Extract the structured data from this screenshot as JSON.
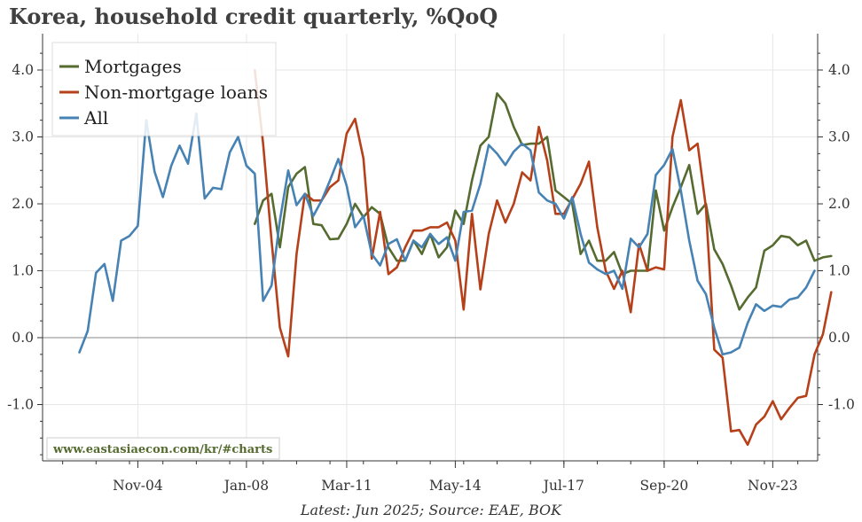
{
  "chart_data": {
    "type": "line",
    "title": "Korea, household credit quarterly, %QoQ",
    "caption": "Latest: Jun 2025; Source: EAE, BOK",
    "watermark": "www.eastasiaecon.com/kr/#charts",
    "xlabel": "",
    "ylabel": "",
    "x_start": "2003Q1",
    "x_tick_labels": [
      "Nov-04",
      "Jan-08",
      "Mar-11",
      "May-14",
      "Jul-17",
      "Sep-20",
      "Nov-23"
    ],
    "x_tick_positions": [
      "2004Q4",
      "2008Q1",
      "2011Q1",
      "2014Q2",
      "2017Q3",
      "2020Q3",
      "2023Q4"
    ],
    "ylim": [
      -1.8,
      4.4
    ],
    "y_ticks": [
      -1.0,
      0.0,
      1.0,
      2.0,
      3.0,
      4.0
    ],
    "y_tick_labels": [
      "-1.0",
      "0.0",
      "1.0",
      "2.0",
      "3.0",
      "4.0"
    ],
    "legend_position": "top-left",
    "series": [
      {
        "name": "Mortgages",
        "color": "#556b2f",
        "start": "2008Q2",
        "values": [
          1.7,
          2.05,
          2.15,
          1.35,
          2.25,
          2.45,
          2.55,
          1.7,
          1.68,
          1.47,
          1.48,
          1.7,
          2.0,
          1.8,
          1.95,
          1.85,
          1.35,
          1.15,
          1.15,
          1.45,
          1.25,
          1.55,
          1.2,
          1.35,
          1.9,
          1.7,
          2.35,
          2.87,
          3.0,
          3.65,
          3.5,
          3.15,
          2.88,
          2.9,
          2.9,
          3.0,
          2.2,
          2.1,
          2.0,
          1.25,
          1.45,
          1.15,
          1.15,
          1.28,
          0.95,
          1.0,
          1.0,
          1.0,
          2.2,
          1.6,
          1.95,
          2.25,
          2.58,
          1.85,
          2.0,
          1.32,
          1.1,
          0.78,
          0.42,
          0.6,
          0.75,
          1.3,
          1.38,
          1.52,
          1.5,
          1.38,
          1.45,
          1.15,
          1.2,
          1.22
        ]
      },
      {
        "name": "Non-mortgage loans",
        "color": "#b5401a",
        "start": "2008Q2",
        "values": [
          4.0,
          2.9,
          1.45,
          0.15,
          -0.28,
          1.25,
          2.15,
          2.05,
          2.05,
          2.25,
          2.35,
          3.05,
          3.27,
          2.68,
          1.18,
          1.88,
          0.95,
          1.05,
          1.35,
          1.6,
          1.6,
          1.65,
          1.65,
          1.72,
          1.45,
          0.42,
          1.85,
          0.72,
          1.55,
          2.05,
          1.72,
          2.0,
          2.47,
          2.35,
          3.15,
          2.65,
          1.85,
          1.85,
          2.07,
          2.3,
          2.63,
          1.65,
          1.0,
          0.73,
          1.0,
          0.38,
          1.4,
          1.0,
          1.05,
          1.02,
          3.0,
          3.55,
          2.8,
          2.9,
          1.95,
          -0.18,
          -0.3,
          -1.4,
          -1.38,
          -1.6,
          -1.3,
          -1.18,
          -0.95,
          -1.22,
          -1.05,
          -0.9,
          -0.87,
          -0.25,
          0.05,
          0.68
        ]
      },
      {
        "name": "All",
        "color": "#4682b4",
        "start": "2003Q1",
        "values": [
          -0.22,
          0.1,
          0.97,
          1.1,
          0.55,
          1.45,
          1.52,
          1.67,
          3.25,
          2.48,
          2.1,
          2.57,
          2.87,
          2.6,
          3.35,
          2.08,
          2.24,
          2.22,
          2.77,
          3.0,
          2.57,
          2.45,
          0.55,
          0.78,
          1.75,
          2.5,
          1.98,
          2.15,
          1.82,
          2.05,
          2.35,
          2.67,
          2.27,
          1.65,
          1.82,
          1.25,
          1.08,
          1.4,
          1.47,
          1.15,
          1.45,
          1.35,
          1.55,
          1.4,
          1.5,
          1.15,
          1.88,
          1.9,
          2.3,
          2.88,
          2.75,
          2.58,
          2.78,
          2.9,
          2.8,
          2.17,
          2.05,
          2.0,
          1.78,
          2.1,
          1.55,
          1.12,
          1.02,
          0.95,
          1.0,
          0.73,
          1.48,
          1.35,
          1.55,
          2.43,
          2.58,
          2.82,
          2.2,
          1.45,
          0.85,
          0.65,
          0.15,
          -0.25,
          -0.22,
          -0.15,
          0.22,
          0.5,
          0.4,
          0.48,
          0.46,
          0.57,
          0.6,
          0.75,
          1.0
        ]
      }
    ]
  }
}
